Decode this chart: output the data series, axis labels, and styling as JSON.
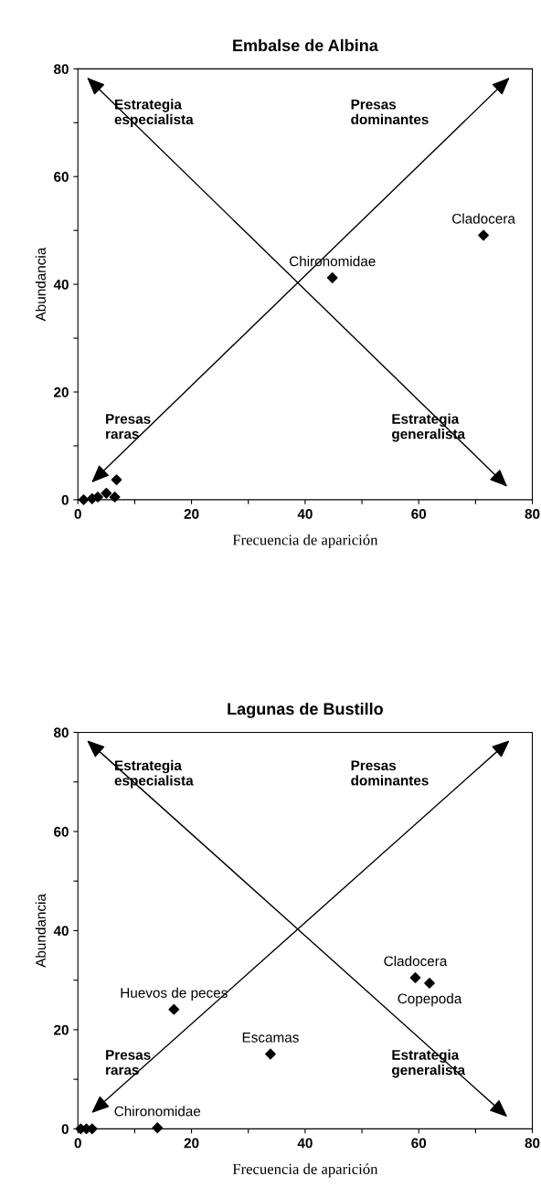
{
  "chart_data": [
    {
      "type": "scatter",
      "title": "Embalse de Albina",
      "xlabel": "Frecuencia de aparición",
      "ylabel": "Abundancia",
      "xlim": [
        0,
        80
      ],
      "ylim": [
        0,
        80
      ],
      "xticks": [
        0,
        {
          "value": 10,
          "label": null
        },
        20,
        {
          "value": 30,
          "label": null
        },
        40,
        {
          "value": 50,
          "label": null
        },
        60,
        {
          "value": 70,
          "label": null
        },
        80
      ],
      "yticks": [
        0,
        {
          "value": 10,
          "label": null
        },
        20,
        {
          "value": 30,
          "label": null
        },
        40,
        {
          "value": 50,
          "label": null
        },
        60,
        {
          "value": 70,
          "label": null
        },
        80
      ],
      "marker": "diamond",
      "grid": false,
      "legend": false,
      "annotations": [
        "Estrategia\nespecialista",
        "Presas\ndominantes",
        "Presas\nraras",
        "Estrategia\ngeneralista"
      ],
      "series": [
        {
          "color": "#000000",
          "x": [
            44.8,
            71.4,
            1,
            2.5,
            3.5,
            5,
            6.5,
            6.8
          ],
          "values": [
            41.2,
            49.1,
            0,
            0.2,
            0.5,
            1.2,
            0.5,
            3.7
          ],
          "value_labels": [
            "Chironomidae",
            "Cladocera",
            null,
            null,
            null,
            null,
            null,
            null
          ]
        }
      ]
    },
    {
      "type": "scatter",
      "title": "Lagunas de Bustillo",
      "xlabel": "Frecuencia de aparición",
      "ylabel": "Abundancia",
      "xlim": [
        0,
        80
      ],
      "ylim": [
        0,
        80
      ],
      "xticks": [
        0,
        {
          "value": 10,
          "label": null
        },
        20,
        {
          "value": 30,
          "label": null
        },
        40,
        {
          "value": 50,
          "label": null
        },
        60,
        {
          "value": 70,
          "label": null
        },
        80
      ],
      "yticks": [
        0,
        {
          "value": 10,
          "label": null
        },
        20,
        {
          "value": 30,
          "label": null
        },
        40,
        {
          "value": 50,
          "label": null
        },
        60,
        {
          "value": 70,
          "label": null
        },
        80
      ],
      "marker": "diamond",
      "grid": false,
      "legend": false,
      "annotations": [
        "Estrategia\nespecialista",
        "Presas\ndominantes",
        "Presas\nraras",
        "Estrategia\ngeneralista"
      ],
      "series": [
        {
          "color": "#000000",
          "x": [
            16.9,
            33.9,
            59.4,
            61.9,
            14,
            0.5,
            1.5,
            2.5
          ],
          "values": [
            24.1,
            15.1,
            30.5,
            29.4,
            0.2,
            0,
            0,
            0
          ],
          "value_labels": [
            "Huevos de peces",
            "Escamas",
            "Cladocera",
            "Copepoda",
            "Chironomidae",
            null,
            null,
            null
          ]
        }
      ]
    }
  ]
}
